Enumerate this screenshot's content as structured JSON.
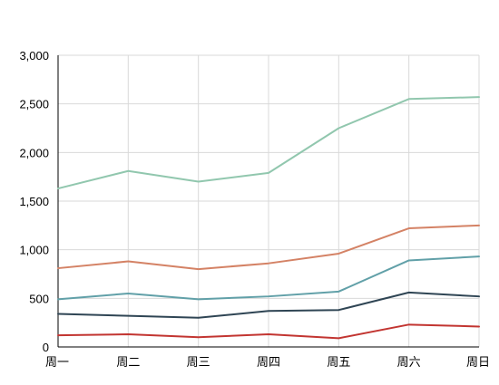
{
  "chart_data": {
    "type": "line",
    "title": "",
    "xlabel": "",
    "ylabel": "",
    "categories": [
      "周一",
      "周二",
      "周三",
      "周四",
      "周五",
      "周六",
      "周日"
    ],
    "ylim": [
      0,
      3000
    ],
    "yticks": [
      0,
      500,
      1000,
      1500,
      2000,
      2500,
      3000
    ],
    "ytick_labels": [
      "0",
      "500",
      "1,000",
      "1,500",
      "2,000",
      "2,500",
      "3,000"
    ],
    "grid": true,
    "legend": "none",
    "series": [
      {
        "values": [
          120,
          130,
          100,
          130,
          90,
          230,
          210
        ],
        "color": "#c23531"
      },
      {
        "values": [
          340,
          320,
          300,
          370,
          380,
          560,
          520
        ],
        "color": "#2f4554"
      },
      {
        "values": [
          490,
          550,
          490,
          520,
          570,
          890,
          930
        ],
        "color": "#61a0a8"
      },
      {
        "values": [
          810,
          880,
          800,
          860,
          960,
          1220,
          1250
        ],
        "color": "#d48265"
      },
      {
        "values": [
          1630,
          1810,
          1700,
          1790,
          2250,
          2550,
          2570
        ],
        "color": "#91c7ae"
      }
    ]
  }
}
